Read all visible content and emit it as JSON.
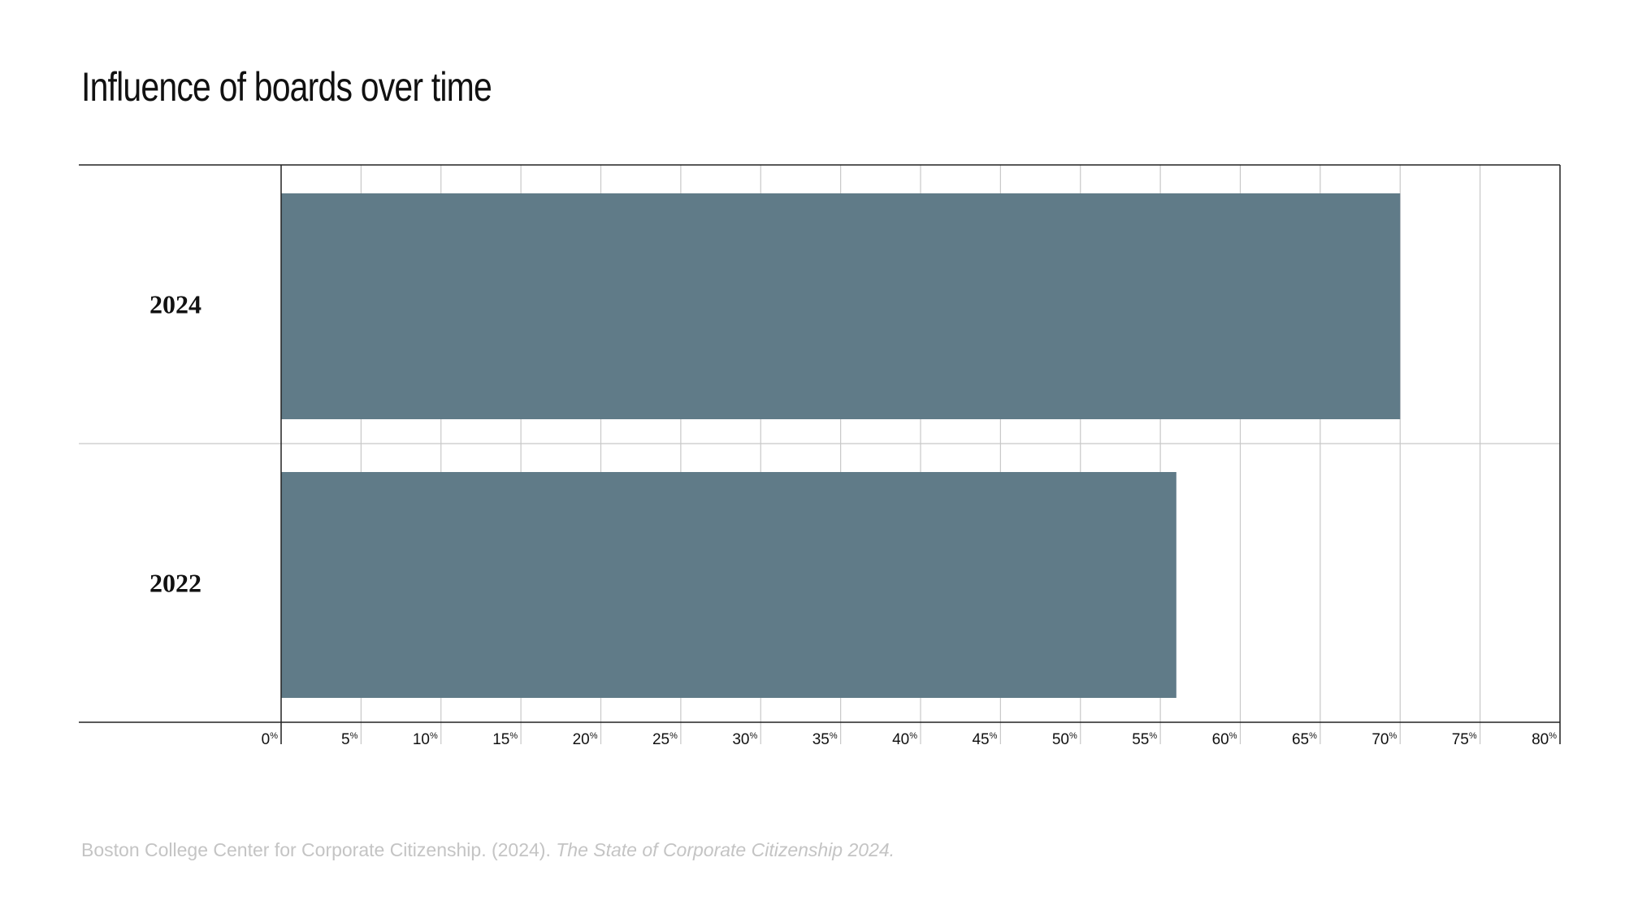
{
  "title": "Influence of boards over time",
  "source": {
    "prefix": "Boston College Center for Corporate Citizenship. (2024). ",
    "italic": "The State of Corporate Citizenship 2024."
  },
  "colors": {
    "bar": "#607b88",
    "grid": "#c8c8c8",
    "axis": "#222222",
    "text": "#111111",
    "source_text": "#c4c4c4"
  },
  "chart_data": {
    "type": "bar",
    "orientation": "horizontal",
    "title": "Influence of boards over time",
    "categories": [
      "2024",
      "2022"
    ],
    "values": [
      70,
      56
    ],
    "xlim": [
      0,
      80
    ],
    "xticks": [
      0,
      5,
      10,
      15,
      20,
      25,
      30,
      35,
      40,
      45,
      50,
      55,
      60,
      65,
      70,
      75,
      80
    ],
    "tick_suffix": "%",
    "xlabel": "",
    "ylabel": "",
    "grid": true,
    "legend": "none"
  }
}
